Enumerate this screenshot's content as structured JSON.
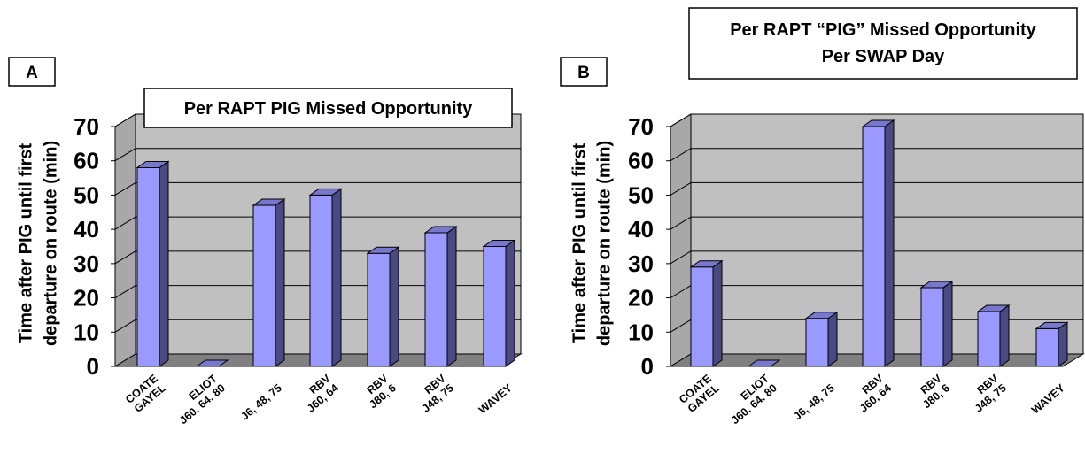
{
  "chart_data": [
    {
      "type": "bar",
      "panel_label": "A",
      "title": "Per RAPT PIG Missed Opportunity",
      "ylabel_lines": [
        "Time after PIG until first",
        "departure on route (min)"
      ],
      "categories": [
        [
          "COATE",
          "GAYEL"
        ],
        [
          "ELIOT",
          "J60. 64. 80"
        ],
        [
          "J6, 48, 75"
        ],
        [
          "RBV",
          "J60, 64"
        ],
        [
          "RBV",
          "J80, 6"
        ],
        [
          "RBV",
          "J48, 75"
        ],
        [
          "WAVEY"
        ]
      ],
      "values": [
        58,
        0,
        47,
        50,
        33,
        39,
        35
      ],
      "yticks": [
        "0",
        "10",
        "20",
        "30",
        "40",
        "50",
        "60",
        "70"
      ],
      "ylim": [
        0,
        70
      ],
      "grid": true,
      "legend": "none"
    },
    {
      "type": "bar",
      "panel_label": "B",
      "title_lines": [
        "Per RAPT “PIG” Missed Opportunity",
        "Per SWAP Day"
      ],
      "ylabel_lines": [
        "Time after PIG until first",
        "departure on route (min)"
      ],
      "categories": [
        [
          "COATE",
          "GAYEL"
        ],
        [
          "ELIOT",
          "J60. 64. 80"
        ],
        [
          "J6, 48, 75"
        ],
        [
          "RBV",
          "J60, 64"
        ],
        [
          "RBV",
          "J80, 6"
        ],
        [
          "RBV",
          "J48, 75"
        ],
        [
          "WAVEY"
        ]
      ],
      "values": [
        29,
        0,
        14,
        70,
        23,
        16,
        11
      ],
      "yticks": [
        "0",
        "10",
        "20",
        "30",
        "40",
        "50",
        "60",
        "70"
      ],
      "ylim": [
        0,
        70
      ],
      "grid": true,
      "legend": "none"
    }
  ],
  "colors": {
    "bar_front": "#9999ff",
    "bar_side": "#4a4a82",
    "bar_top": "#7777cc",
    "back_wall": "#c0c0c0",
    "floor": "#808080",
    "outline": "#000000"
  }
}
